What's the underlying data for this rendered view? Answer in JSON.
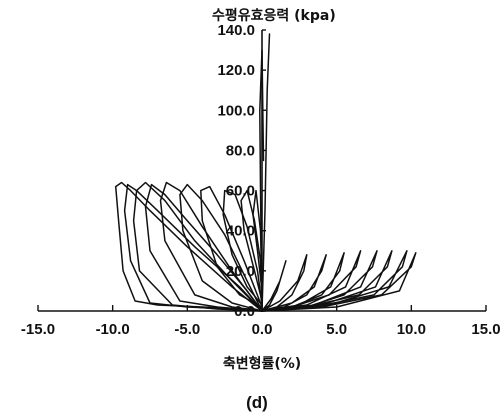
{
  "chart_data": {
    "type": "line",
    "title": "",
    "xlabel": "축변형률(%)",
    "ylabel": "수평유효응력 (kpa)",
    "caption": "(d)",
    "xlim": [
      -15,
      15
    ],
    "ylim": [
      0,
      140
    ],
    "x_ticks": [
      "-15.0",
      "-10.0",
      "-5.0",
      "0.0",
      "5.0",
      "10.0",
      "15.0"
    ],
    "y_ticks": [
      "0.0",
      "20.0",
      "40.0",
      "60.0",
      "80.0",
      "100.0",
      "120.0",
      "140.0"
    ],
    "grid": false,
    "legend": "none",
    "series_color": "#111111",
    "series": [
      {
        "x": [
          0,
          0.2,
          0.35,
          0.5
        ],
        "y": [
          0,
          50,
          110,
          138
        ]
      },
      {
        "x": [
          0,
          -0.1,
          -0.15,
          0.0,
          0.1
        ],
        "y": [
          2,
          60,
          100,
          130,
          75
        ]
      },
      {
        "x": [
          0,
          -1,
          -4,
          -7,
          -8.5,
          -9.3,
          -9.6,
          -9.8,
          -9.4,
          -8.8,
          -7.5,
          -5,
          -2,
          0
        ],
        "y": [
          0,
          1,
          2,
          3,
          5,
          20,
          45,
          62,
          64,
          60,
          50,
          32,
          12,
          0
        ]
      },
      {
        "x": [
          0,
          -2,
          -5,
          -7.5,
          -8.8,
          -9.2,
          -9.0,
          -8.4,
          -7.0,
          -4.5,
          -1.5,
          0
        ],
        "y": [
          0,
          1,
          2,
          4,
          25,
          50,
          63,
          60,
          50,
          32,
          12,
          0
        ]
      },
      {
        "x": [
          0,
          -3,
          -6,
          -8.2,
          -8.6,
          -8.4,
          -7.8,
          -6.5,
          -4.5,
          -2,
          0
        ],
        "y": [
          0,
          1,
          3,
          20,
          45,
          60,
          64,
          55,
          35,
          15,
          0
        ]
      },
      {
        "x": [
          0,
          -3,
          -5.5,
          -7.5,
          -7.8,
          -7.4,
          -6.5,
          -5.0,
          -3,
          -1,
          0
        ],
        "y": [
          0,
          2,
          5,
          30,
          52,
          63,
          58,
          45,
          28,
          10,
          0
        ]
      },
      {
        "x": [
          0,
          -2,
          -4.5,
          -6.5,
          -6.8,
          -6.4,
          -5.5,
          -4,
          -2,
          0
        ],
        "y": [
          0,
          2,
          8,
          35,
          55,
          64,
          60,
          42,
          20,
          0
        ]
      },
      {
        "x": [
          0,
          -2,
          -4,
          -5.3,
          -5.5,
          -5.0,
          -4,
          -2.5,
          -1,
          0
        ],
        "y": [
          0,
          4,
          15,
          40,
          58,
          63,
          55,
          38,
          15,
          0
        ]
      },
      {
        "x": [
          0,
          -1.5,
          -3,
          -4.0,
          -4.1,
          -3.5,
          -2.5,
          -1.2,
          0
        ],
        "y": [
          2,
          8,
          22,
          45,
          60,
          62,
          48,
          25,
          2
        ]
      },
      {
        "x": [
          0,
          -1,
          -2,
          -2.6,
          -2.5,
          -1.8,
          -1,
          -0.3,
          0
        ],
        "y": [
          3,
          12,
          28,
          48,
          60,
          58,
          42,
          20,
          3
        ]
      },
      {
        "x": [
          0,
          -0.5,
          -1.2,
          -1.4,
          -1.0,
          -0.5,
          -0.1,
          0
        ],
        "y": [
          5,
          20,
          40,
          55,
          60,
          45,
          25,
          5
        ]
      },
      {
        "x": [
          0,
          -0.3,
          -0.6,
          -0.4,
          -0.1,
          0
        ],
        "y": [
          10,
          30,
          48,
          60,
          40,
          10
        ]
      },
      {
        "x": [
          0,
          0.5,
          1.0,
          1.4,
          1.6,
          1.2,
          0.6,
          0
        ],
        "y": [
          0,
          3,
          10,
          20,
          25,
          15,
          6,
          0
        ]
      },
      {
        "x": [
          0,
          1,
          2,
          2.8,
          3.0,
          2.4,
          1.2,
          0
        ],
        "y": [
          0,
          2,
          8,
          20,
          28,
          15,
          5,
          0
        ]
      },
      {
        "x": [
          0,
          1.5,
          3,
          4.0,
          4.3,
          3.5,
          2,
          0
        ],
        "y": [
          0,
          2,
          8,
          20,
          28,
          12,
          4,
          0
        ]
      },
      {
        "x": [
          0,
          2,
          4,
          5.2,
          5.5,
          4.6,
          2.5,
          0
        ],
        "y": [
          0,
          2,
          8,
          20,
          29,
          12,
          3,
          0
        ]
      },
      {
        "x": [
          0,
          2,
          4.5,
          6.3,
          6.6,
          5.6,
          3,
          0
        ],
        "y": [
          0,
          2,
          8,
          22,
          30,
          12,
          3,
          0
        ]
      },
      {
        "x": [
          0,
          3,
          5.5,
          7.4,
          7.7,
          6.6,
          3.5,
          0
        ],
        "y": [
          0,
          2,
          8,
          22,
          30,
          12,
          3,
          0
        ]
      },
      {
        "x": [
          0,
          3,
          6.5,
          8.4,
          8.7,
          7.6,
          4,
          0
        ],
        "y": [
          0,
          2,
          8,
          22,
          30,
          12,
          3,
          0
        ]
      },
      {
        "x": [
          0,
          3.5,
          7.5,
          9.4,
          9.7,
          8.5,
          4.5,
          0
        ],
        "y": [
          0,
          2,
          8,
          22,
          30,
          12,
          3,
          0
        ]
      },
      {
        "x": [
          0,
          4,
          8,
          10.0,
          10.3,
          9.2,
          5,
          0
        ],
        "y": [
          0,
          2,
          8,
          22,
          29,
          10,
          2,
          0
        ]
      }
    ]
  }
}
